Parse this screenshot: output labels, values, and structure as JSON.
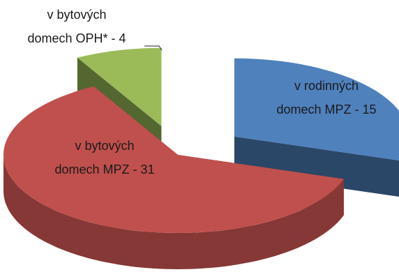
{
  "chart_data": {
    "type": "pie",
    "values": [
      15,
      31,
      4
    ],
    "colors": [
      "#4f81bd",
      "#c0504d",
      "#9bbb59"
    ],
    "value_labels": [
      [
        "v rodinných",
        "domech MPZ - 15"
      ],
      [
        "v bytových",
        "domech  MPZ - 31"
      ],
      [
        "v bytových",
        "domech  OPH* - 4"
      ]
    ]
  }
}
